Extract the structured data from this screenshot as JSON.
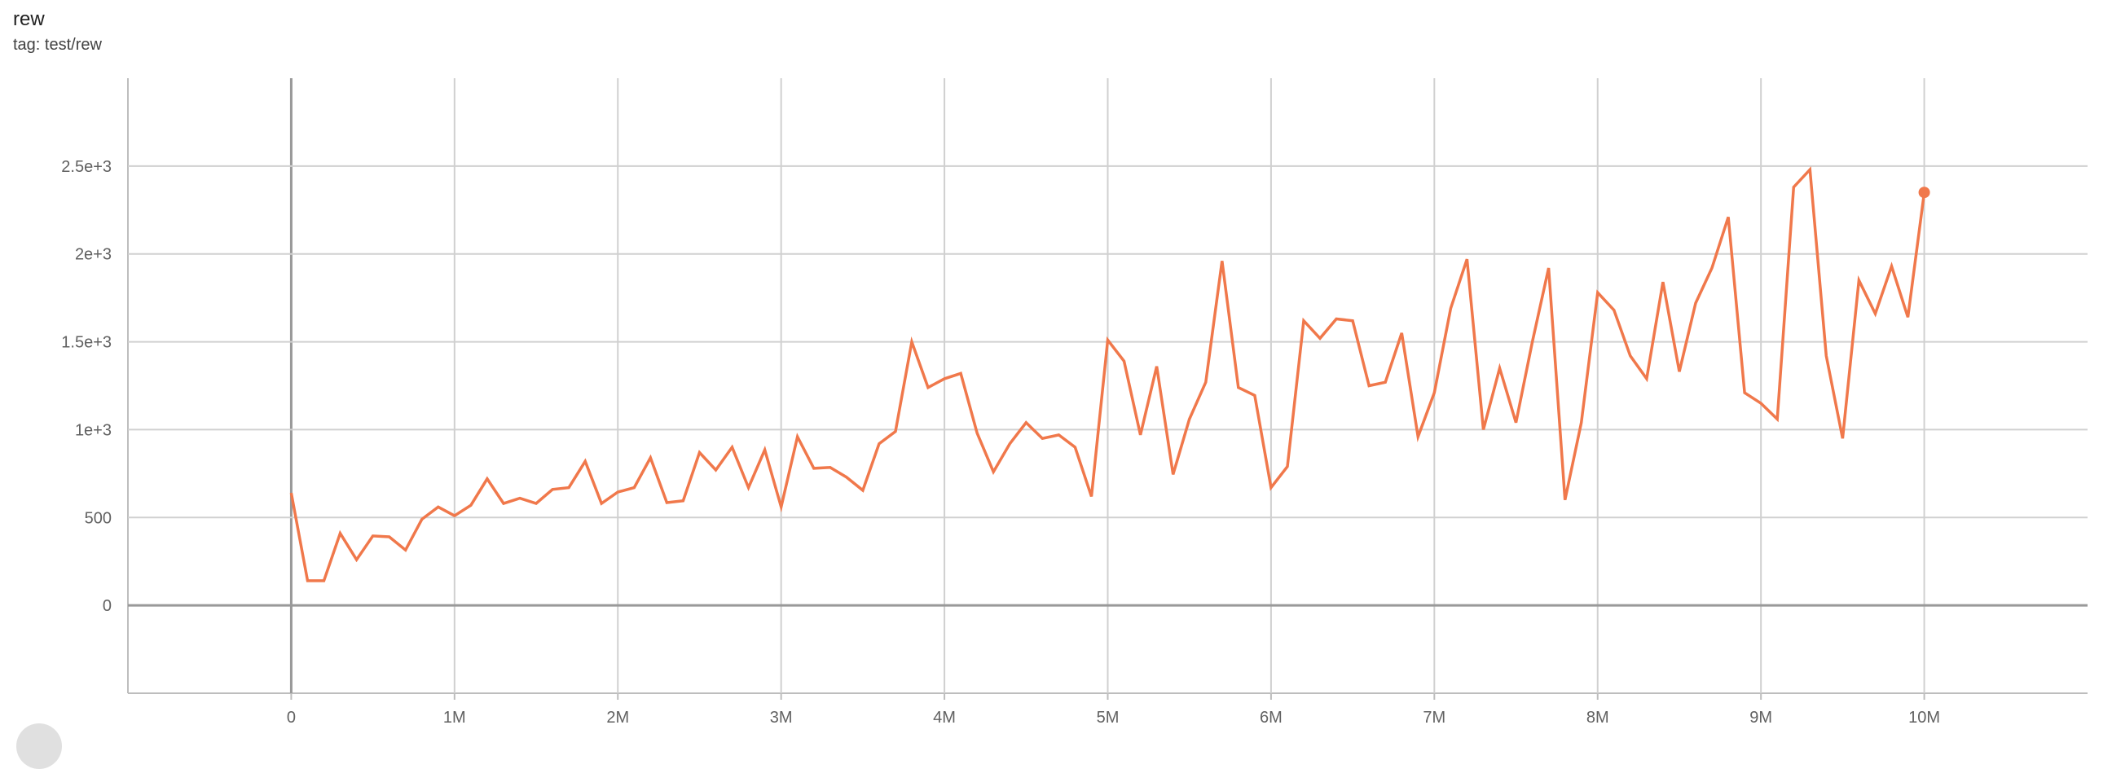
{
  "title": "rew",
  "tag": "tag: test/rew",
  "chart_data": {
    "type": "line",
    "title": "rew",
    "subtitle": "tag: test/rew",
    "xlabel": "",
    "ylabel": "",
    "xlim": [
      -1000000,
      11000000
    ],
    "ylim": [
      -500,
      3000
    ],
    "grid": true,
    "x_ticks": [
      {
        "v": 0,
        "label": "0"
      },
      {
        "v": 1000000,
        "label": "1M"
      },
      {
        "v": 2000000,
        "label": "2M"
      },
      {
        "v": 3000000,
        "label": "3M"
      },
      {
        "v": 4000000,
        "label": "4M"
      },
      {
        "v": 5000000,
        "label": "5M"
      },
      {
        "v": 6000000,
        "label": "6M"
      },
      {
        "v": 7000000,
        "label": "7M"
      },
      {
        "v": 8000000,
        "label": "8M"
      },
      {
        "v": 9000000,
        "label": "9M"
      },
      {
        "v": 10000000,
        "label": "10M"
      }
    ],
    "y_ticks": [
      {
        "v": 0,
        "label": "0"
      },
      {
        "v": 500,
        "label": "500"
      },
      {
        "v": 1000,
        "label": "1e+3"
      },
      {
        "v": 1500,
        "label": "1.5e+3"
      },
      {
        "v": 2000,
        "label": "2e+3"
      },
      {
        "v": 2500,
        "label": "2.5e+3"
      }
    ],
    "series": [
      {
        "color": "#f0784b",
        "x_step": 100000,
        "y": [
          640,
          140,
          140,
          410,
          260,
          395,
          390,
          315,
          490,
          560,
          510,
          570,
          720,
          580,
          610,
          580,
          660,
          670,
          820,
          580,
          645,
          670,
          840,
          585,
          595,
          870,
          770,
          900,
          670,
          885,
          560,
          960,
          780,
          785,
          730,
          655,
          920,
          990,
          1500,
          1240,
          1290,
          1320,
          980,
          760,
          920,
          1040,
          950,
          970,
          900,
          620,
          1510,
          1390,
          970,
          1360,
          745,
          1060,
          1270,
          1960,
          1240,
          1195,
          670,
          790,
          1620,
          1520,
          1630,
          1620,
          1250,
          1270,
          1550,
          960,
          1210,
          1690,
          1970,
          1000,
          1350,
          1040,
          1500,
          1920,
          600,
          1040,
          1780,
          1680,
          1420,
          1290,
          1840,
          1330,
          1720,
          1920,
          2210,
          1210,
          1150,
          1060,
          2380,
          2480,
          1420,
          950,
          1850,
          1660,
          1930,
          1640,
          2350
        ]
      }
    ]
  }
}
